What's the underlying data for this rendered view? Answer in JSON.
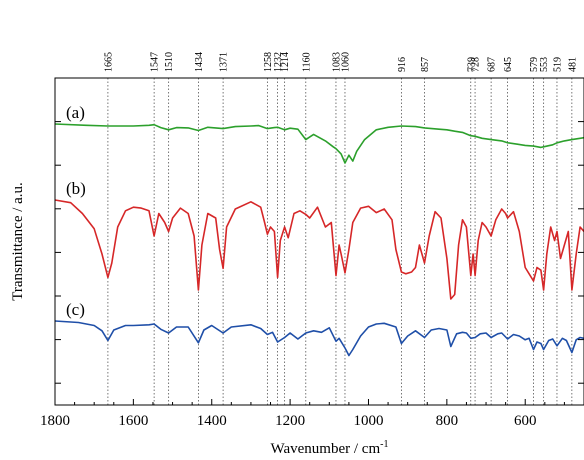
{
  "chart_data": {
    "type": "line",
    "xlabel": "Wavenumber / cm",
    "xlabel_sup": "-1",
    "ylabel": "Transmittance / a.u.",
    "xlim": [
      1800,
      450
    ],
    "x_reversed": true,
    "x_ticks": [
      1800,
      1600,
      1400,
      1200,
      1000,
      800,
      600
    ],
    "y_ticks_count": 7,
    "grid": false,
    "legend": "none",
    "peak_positions": [
      1665,
      1547,
      1510,
      1434,
      1371,
      1258,
      1232,
      1214,
      1160,
      1083,
      1060,
      916,
      857,
      739,
      728,
      687,
      645,
      579,
      553,
      519,
      481
    ],
    "series": [
      {
        "name": "(a)",
        "color": "#2ca02c",
        "x": [
          1800,
          1720,
          1665,
          1600,
          1560,
          1547,
          1530,
          1510,
          1490,
          1460,
          1434,
          1410,
          1371,
          1340,
          1300,
          1280,
          1258,
          1240,
          1232,
          1214,
          1200,
          1180,
          1160,
          1140,
          1110,
          1090,
          1083,
          1070,
          1060,
          1050,
          1040,
          1030,
          1010,
          980,
          950,
          916,
          880,
          857,
          820,
          800,
          780,
          760,
          739,
          728,
          710,
          687,
          660,
          645,
          620,
          600,
          579,
          560,
          553,
          530,
          519,
          500,
          481,
          460,
          450
        ],
        "y": [
          0.0,
          0.2,
          0.3,
          0.3,
          0.2,
          0.1,
          0.55,
          0.9,
          0.55,
          0.6,
          1.0,
          0.5,
          0.7,
          0.4,
          0.3,
          0.25,
          0.7,
          0.55,
          0.5,
          0.9,
          0.65,
          0.8,
          2.4,
          1.6,
          2.6,
          3.5,
          3.8,
          4.6,
          6.0,
          4.8,
          5.7,
          4.2,
          2.4,
          0.9,
          0.5,
          0.3,
          0.4,
          0.6,
          0.8,
          0.9,
          1.1,
          1.3,
          1.8,
          1.9,
          2.2,
          2.4,
          2.6,
          2.9,
          3.1,
          3.3,
          3.4,
          3.6,
          3.5,
          3.2,
          2.9,
          2.6,
          2.4,
          2.2,
          2.1
        ]
      },
      {
        "name": "(b)",
        "color": "#d62728",
        "x": [
          1800,
          1760,
          1730,
          1700,
          1680,
          1665,
          1655,
          1640,
          1620,
          1600,
          1580,
          1560,
          1547,
          1535,
          1520,
          1510,
          1500,
          1480,
          1460,
          1445,
          1434,
          1425,
          1410,
          1390,
          1380,
          1371,
          1362,
          1340,
          1300,
          1275,
          1265,
          1258,
          1250,
          1240,
          1232,
          1225,
          1214,
          1205,
          1190,
          1175,
          1160,
          1150,
          1130,
          1110,
          1095,
          1083,
          1075,
          1070,
          1060,
          1050,
          1040,
          1020,
          1000,
          980,
          960,
          940,
          930,
          916,
          905,
          890,
          880,
          870,
          857,
          845,
          830,
          815,
          800,
          790,
          780,
          770,
          760,
          750,
          739,
          733,
          728,
          720,
          710,
          700,
          687,
          675,
          660,
          650,
          645,
          630,
          615,
          600,
          590,
          579,
          570,
          560,
          553,
          545,
          535,
          525,
          519,
          510,
          500,
          490,
          481,
          470,
          460,
          450
        ],
        "y": [
          0.0,
          0.3,
          1.5,
          3.2,
          6.0,
          8.6,
          7.0,
          3.0,
          1.2,
          0.8,
          0.9,
          1.2,
          4.0,
          1.5,
          2.5,
          3.5,
          2.0,
          0.9,
          1.5,
          4.0,
          10.0,
          5.0,
          1.5,
          2.0,
          5.5,
          7.6,
          3.0,
          1.0,
          0.2,
          0.8,
          2.5,
          3.8,
          3.0,
          3.5,
          8.6,
          4.5,
          3.0,
          4.2,
          1.5,
          1.2,
          1.6,
          2.0,
          0.8,
          3.0,
          2.5,
          8.4,
          5.0,
          6.0,
          8.1,
          5.5,
          2.5,
          0.9,
          0.7,
          1.4,
          1.0,
          2.2,
          5.5,
          8.0,
          8.2,
          8.0,
          7.5,
          5.0,
          7.0,
          4.0,
          1.3,
          2.0,
          6.5,
          11.0,
          10.5,
          5.0,
          2.2,
          3.0,
          8.4,
          6.0,
          8.4,
          4.5,
          2.5,
          3.0,
          4.0,
          2.2,
          1.0,
          1.5,
          2.0,
          1.3,
          3.5,
          7.5,
          8.2,
          9.0,
          7.5,
          7.8,
          10.0,
          6.0,
          3.0,
          4.5,
          3.5,
          6.5,
          5.0,
          3.5,
          10.0,
          6.0,
          3.0,
          3.5
        ]
      },
      {
        "name": "(c)",
        "color": "#1f4fa8",
        "x": [
          1800,
          1740,
          1700,
          1680,
          1665,
          1650,
          1620,
          1600,
          1560,
          1547,
          1530,
          1510,
          1490,
          1460,
          1434,
          1420,
          1400,
          1371,
          1350,
          1300,
          1275,
          1258,
          1245,
          1232,
          1214,
          1200,
          1180,
          1160,
          1140,
          1120,
          1100,
          1083,
          1075,
          1060,
          1050,
          1040,
          1020,
          1000,
          980,
          960,
          930,
          916,
          900,
          880,
          857,
          840,
          820,
          800,
          790,
          775,
          760,
          750,
          739,
          728,
          715,
          700,
          687,
          670,
          660,
          645,
          630,
          615,
          600,
          590,
          579,
          570,
          560,
          553,
          540,
          530,
          519,
          505,
          495,
          481,
          470,
          460,
          450
        ],
        "y": [
          0.0,
          0.2,
          0.6,
          1.3,
          2.6,
          1.2,
          0.6,
          0.6,
          0.5,
          0.4,
          1.1,
          1.6,
          0.8,
          0.8,
          2.9,
          1.2,
          0.6,
          1.6,
          0.8,
          0.5,
          1.0,
          1.8,
          1.5,
          2.8,
          2.2,
          1.6,
          2.4,
          1.6,
          1.3,
          1.5,
          0.9,
          2.7,
          2.3,
          3.6,
          4.6,
          3.8,
          2.0,
          0.8,
          0.4,
          0.3,
          0.8,
          3.0,
          2.0,
          1.3,
          2.2,
          1.2,
          1.0,
          1.2,
          3.4,
          1.7,
          1.5,
          1.6,
          2.3,
          2.2,
          1.7,
          1.6,
          2.2,
          1.7,
          1.6,
          2.4,
          1.8,
          2.0,
          2.5,
          2.3,
          3.8,
          2.8,
          3.0,
          3.8,
          2.6,
          2.4,
          3.3,
          2.3,
          2.6,
          4.2,
          2.5,
          2.2,
          2.3
        ]
      }
    ]
  }
}
